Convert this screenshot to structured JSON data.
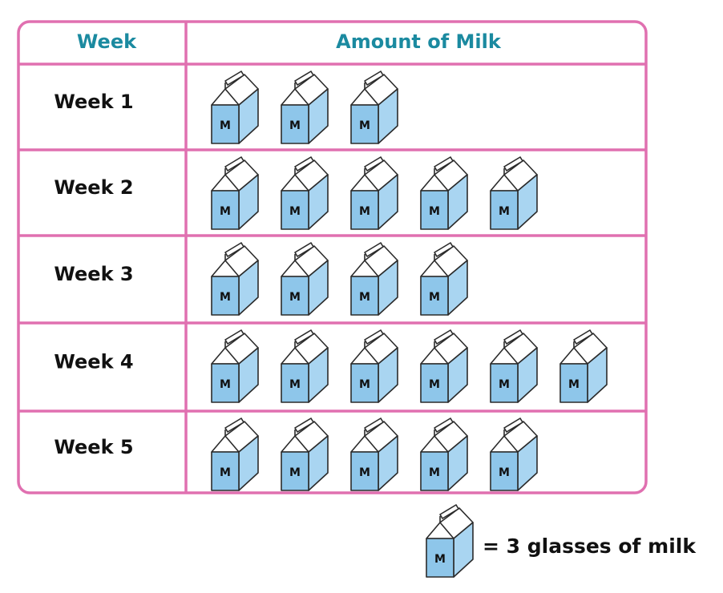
{
  "chart_data": {
    "type": "pictograph",
    "columns": [
      "Week",
      "Amount of Milk"
    ],
    "categories": [
      "Week 1",
      "Week 2",
      "Week 3",
      "Week 4",
      "Week 5"
    ],
    "values": [
      3,
      5,
      4,
      6,
      5
    ],
    "icon_label": "M",
    "key_label": "= 3 glasses of milk",
    "color": "#8ec6ea"
  }
}
